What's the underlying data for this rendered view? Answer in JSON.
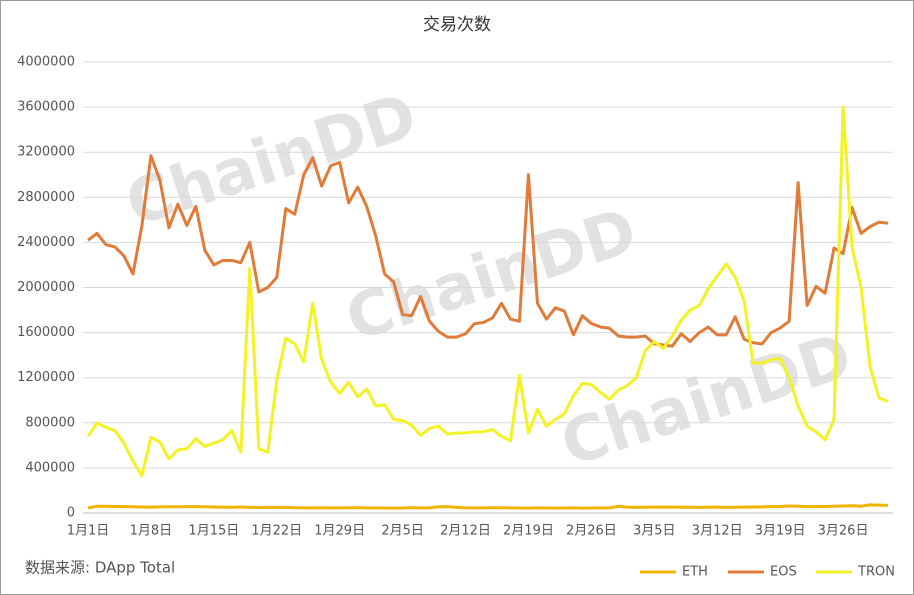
{
  "chart_data": {
    "type": "line",
    "title": "交易次数",
    "source": "数据来源:  DApp Total",
    "watermark": "ChainDD",
    "categories": [
      "1月1日",
      null,
      null,
      null,
      null,
      null,
      null,
      "1月8日",
      null,
      null,
      null,
      null,
      null,
      null,
      "1月15日",
      null,
      null,
      null,
      null,
      null,
      null,
      "1月22日",
      null,
      null,
      null,
      null,
      null,
      null,
      "1月29日",
      null,
      null,
      null,
      null,
      null,
      null,
      "2月5日",
      null,
      null,
      null,
      null,
      null,
      null,
      "2月12日",
      null,
      null,
      null,
      null,
      null,
      null,
      "2月19日",
      null,
      null,
      null,
      null,
      null,
      null,
      "2月26日",
      null,
      null,
      null,
      null,
      null,
      null,
      "3月5日",
      null,
      null,
      null,
      null,
      null,
      null,
      "3月12日",
      null,
      null,
      null,
      null,
      null,
      null,
      "3月19日",
      null,
      null,
      null,
      null,
      null,
      null,
      "3月26日",
      null,
      null,
      null,
      null,
      null
    ],
    "series": [
      {
        "name": "ETH",
        "color": "#f0b400",
        "values": [
          45000,
          60000,
          60000,
          58000,
          57000,
          55000,
          53000,
          52000,
          54000,
          55000,
          55000,
          56000,
          57000,
          55000,
          53000,
          52000,
          50000,
          53000,
          50000,
          48000,
          50000,
          49000,
          50000,
          47000,
          45000,
          46000,
          47000,
          46000,
          45000,
          47000,
          48000,
          46000,
          45000,
          44000,
          43000,
          44000,
          48000,
          45000,
          46000,
          55000,
          56000,
          50000,
          47000,
          46000,
          45000,
          48000,
          47000,
          46000,
          44000,
          43000,
          45000,
          44000,
          43000,
          44000,
          45000,
          43000,
          44000,
          46000,
          45000,
          60000,
          52000,
          50000,
          51000,
          52000,
          53000,
          52000,
          51000,
          52000,
          50000,
          51000,
          52000,
          50000,
          51000,
          52000,
          53000,
          54000,
          56000,
          58000,
          62000,
          60000,
          57000,
          56000,
          58000,
          60000,
          62000,
          64000,
          60000,
          72000,
          70000,
          68000
        ]
      },
      {
        "name": "EOS",
        "color": "#e07b39",
        "values": [
          2420000,
          2480000,
          2380000,
          2360000,
          2280000,
          2120000,
          2550000,
          3170000,
          2950000,
          2530000,
          2740000,
          2550000,
          2720000,
          2330000,
          2200000,
          2240000,
          2240000,
          2220000,
          2400000,
          1960000,
          2000000,
          2090000,
          2700000,
          2650000,
          3000000,
          3150000,
          2900000,
          3080000,
          3110000,
          2750000,
          2890000,
          2720000,
          2460000,
          2120000,
          2050000,
          1760000,
          1750000,
          1920000,
          1700000,
          1610000,
          1560000,
          1560000,
          1590000,
          1680000,
          1690000,
          1730000,
          1860000,
          1720000,
          1700000,
          3000000,
          1860000,
          1720000,
          1820000,
          1790000,
          1580000,
          1750000,
          1680000,
          1650000,
          1640000,
          1570000,
          1560000,
          1560000,
          1570000,
          1500000,
          1490000,
          1480000,
          1590000,
          1520000,
          1600000,
          1650000,
          1580000,
          1580000,
          1740000,
          1540000,
          1510000,
          1500000,
          1600000,
          1640000,
          1700000,
          2930000,
          1840000,
          2010000,
          1950000,
          2350000,
          2300000,
          2710000,
          2480000,
          2540000,
          2580000,
          2570000
        ]
      },
      {
        "name": "TRON",
        "color": "#f2f224",
        "values": [
          680000,
          800000,
          760000,
          730000,
          620000,
          460000,
          330000,
          670000,
          630000,
          480000,
          560000,
          570000,
          660000,
          590000,
          620000,
          650000,
          730000,
          540000,
          2170000,
          570000,
          540000,
          1180000,
          1550000,
          1500000,
          1340000,
          1860000,
          1360000,
          1160000,
          1060000,
          1160000,
          1030000,
          1100000,
          950000,
          960000,
          830000,
          820000,
          780000,
          690000,
          750000,
          770000,
          700000,
          710000,
          710000,
          720000,
          720000,
          740000,
          680000,
          640000,
          1220000,
          710000,
          920000,
          770000,
          830000,
          880000,
          1040000,
          1150000,
          1140000,
          1070000,
          1010000,
          1090000,
          1130000,
          1200000,
          1440000,
          1520000,
          1460000,
          1570000,
          1710000,
          1800000,
          1840000,
          1990000,
          2100000,
          2210000,
          2090000,
          1880000,
          1330000,
          1330000,
          1360000,
          1370000,
          1200000,
          950000,
          770000,
          720000,
          650000,
          830000,
          3600000,
          2360000,
          2000000,
          1300000,
          1020000,
          990000
        ]
      }
    ],
    "ylim": [
      0,
      4000000
    ],
    "yticks": [
      0,
      400000,
      800000,
      1200000,
      1600000,
      2000000,
      2400000,
      2800000,
      3200000,
      3600000,
      4000000
    ],
    "grid": true,
    "legend": "bottom-right"
  }
}
